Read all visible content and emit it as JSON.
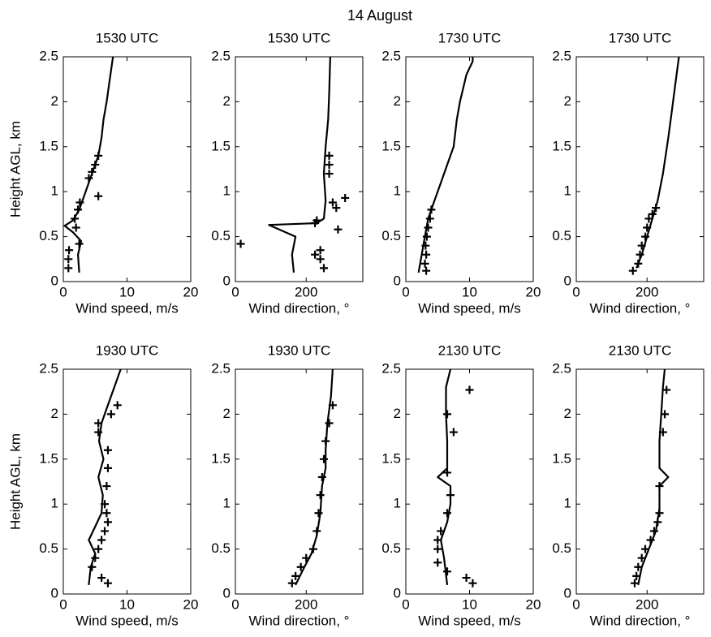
{
  "suptitle": "14 August",
  "chart_data": [
    {
      "type": "line",
      "title": "1530 UTC",
      "xlabel": "Wind speed, m/s",
      "ylabel": "Height AGL, km",
      "xlim": [
        0,
        20
      ],
      "xticks": [
        0,
        10,
        20
      ],
      "ylim": [
        0,
        2.5
      ],
      "yticks": [
        0,
        0.5,
        1,
        1.5,
        2,
        2.5
      ],
      "series": [
        {
          "type": "line",
          "color": "#000000",
          "x": [
            2.5,
            2.3,
            2.8,
            1.5,
            0.2,
            1.5,
            2.5,
            3.5,
            4.5,
            5.5,
            6,
            6.3,
            6.8,
            7.2,
            7.8
          ],
          "y": [
            0.1,
            0.3,
            0.45,
            0.55,
            0.62,
            0.68,
            0.8,
            1.0,
            1.2,
            1.4,
            1.6,
            1.8,
            2.0,
            2.2,
            2.5
          ]
        },
        {
          "type": "scatter",
          "marker": "+",
          "color": "#000000",
          "x": [
            0.8,
            0.8,
            0.9,
            2.5,
            2,
            1.8,
            2.3,
            2.6,
            5.5,
            4,
            4.5,
            5,
            5.5
          ],
          "y": [
            0.15,
            0.25,
            0.35,
            0.42,
            0.6,
            0.7,
            0.8,
            0.88,
            0.95,
            1.15,
            1.22,
            1.3,
            1.4
          ]
        }
      ]
    },
    {
      "type": "line",
      "title": "1530 UTC",
      "xlabel": "Wind direction, °",
      "xlim": [
        0,
        360
      ],
      "xticks": [
        0,
        200
      ],
      "ylim": [
        0,
        2.5
      ],
      "yticks": [
        0,
        0.5,
        1,
        1.5,
        2,
        2.5
      ],
      "series": [
        {
          "type": "line",
          "color": "#000000",
          "x": [
            165,
            160,
            170,
            95,
            230,
            250,
            255,
            250,
            255,
            262,
            265,
            268
          ],
          "y": [
            0.1,
            0.3,
            0.5,
            0.63,
            0.65,
            0.7,
            0.9,
            1.2,
            1.5,
            1.8,
            2.1,
            2.5
          ]
        },
        {
          "type": "scatter",
          "marker": "+",
          "color": "#000000",
          "x": [
            15,
            230,
            225,
            275,
            285,
            310,
            290,
            240,
            225,
            240,
            250,
            265,
            265,
            265
          ],
          "y": [
            0.42,
            0.68,
            0.65,
            0.88,
            0.82,
            0.93,
            0.58,
            0.35,
            0.3,
            0.25,
            0.15,
            1.2,
            1.3,
            1.4
          ]
        }
      ]
    },
    {
      "type": "line",
      "title": "1730 UTC",
      "xlabel": "Wind speed, m/s",
      "xlim": [
        0,
        20
      ],
      "xticks": [
        0,
        10,
        20
      ],
      "ylim": [
        0,
        2.5
      ],
      "yticks": [
        0,
        0.5,
        1,
        1.5,
        2,
        2.5
      ],
      "series": [
        {
          "type": "line",
          "color": "#000000",
          "x": [
            2,
            2.5,
            3,
            3.5,
            4.5,
            5.5,
            6.5,
            7.5,
            8,
            8.5,
            9.5,
            10.5,
            10.5
          ],
          "y": [
            0.1,
            0.3,
            0.5,
            0.7,
            0.9,
            1.1,
            1.3,
            1.5,
            1.8,
            2.0,
            2.3,
            2.45,
            2.5
          ]
        },
        {
          "type": "scatter",
          "marker": "+",
          "color": "#000000",
          "x": [
            3.2,
            3,
            3.2,
            3.1,
            3.3,
            3.5,
            3.8,
            4
          ],
          "y": [
            0.12,
            0.2,
            0.3,
            0.4,
            0.5,
            0.6,
            0.7,
            0.8
          ]
        }
      ]
    },
    {
      "type": "line",
      "title": "1730 UTC",
      "xlabel": "Wind direction, °",
      "xlim": [
        0,
        360
      ],
      "xticks": [
        0,
        200
      ],
      "ylim": [
        0,
        2.5
      ],
      "yticks": [
        0,
        0.5,
        1,
        1.5,
        2,
        2.5
      ],
      "series": [
        {
          "type": "line",
          "color": "#000000",
          "x": [
            170,
            185,
            200,
            215,
            230,
            245,
            260,
            270,
            280,
            290
          ],
          "y": [
            0.15,
            0.3,
            0.5,
            0.7,
            0.9,
            1.2,
            1.6,
            1.9,
            2.2,
            2.5
          ]
        },
        {
          "type": "scatter",
          "marker": "+",
          "color": "#000000",
          "x": [
            160,
            175,
            180,
            185,
            195,
            200,
            205,
            215,
            225
          ],
          "y": [
            0.12,
            0.2,
            0.3,
            0.4,
            0.5,
            0.6,
            0.7,
            0.75,
            0.82
          ]
        }
      ]
    },
    {
      "type": "line",
      "title": "1930 UTC",
      "xlabel": "Wind speed, m/s",
      "ylabel": "Height AGL, km",
      "xlim": [
        0,
        20
      ],
      "xticks": [
        0,
        10,
        20
      ],
      "ylim": [
        0,
        2.5
      ],
      "yticks": [
        0,
        0.5,
        1,
        1.5,
        2,
        2.5
      ],
      "series": [
        {
          "type": "line",
          "color": "#000000",
          "x": [
            4,
            4.3,
            5,
            4,
            5,
            6,
            6.2,
            5.5,
            6.3,
            5.6,
            6,
            7,
            8,
            9
          ],
          "y": [
            0.1,
            0.3,
            0.45,
            0.6,
            0.75,
            0.9,
            1.1,
            1.3,
            1.5,
            1.7,
            1.9,
            2.1,
            2.3,
            2.5
          ]
        },
        {
          "type": "scatter",
          "marker": "+",
          "color": "#000000",
          "x": [
            7,
            6,
            4.5,
            5,
            5.5,
            6,
            6.5,
            7,
            6.8,
            6.5,
            6.8,
            7,
            7,
            5.5,
            5.5,
            7.5,
            8.5
          ],
          "y": [
            0.12,
            0.18,
            0.3,
            0.4,
            0.5,
            0.6,
            0.7,
            0.8,
            0.9,
            1.0,
            1.2,
            1.4,
            1.6,
            1.8,
            1.9,
            2.0,
            2.1
          ]
        }
      ]
    },
    {
      "type": "line",
      "title": "1930 UTC",
      "xlabel": "Wind direction, °",
      "xlim": [
        0,
        360
      ],
      "xticks": [
        0,
        200
      ],
      "ylim": [
        0,
        2.5
      ],
      "yticks": [
        0,
        0.5,
        1,
        1.5,
        2,
        2.5
      ],
      "series": [
        {
          "type": "line",
          "color": "#000000",
          "x": [
            170,
            195,
            215,
            230,
            240,
            245,
            255,
            255,
            260,
            270,
            275
          ],
          "y": [
            0.1,
            0.3,
            0.45,
            0.65,
            0.9,
            1.2,
            1.4,
            1.6,
            1.9,
            2.2,
            2.5
          ]
        },
        {
          "type": "scatter",
          "marker": "+",
          "color": "#000000",
          "x": [
            160,
            170,
            185,
            200,
            220,
            230,
            235,
            240,
            245,
            250,
            255,
            265,
            275
          ],
          "y": [
            0.12,
            0.2,
            0.3,
            0.4,
            0.5,
            0.7,
            0.9,
            1.1,
            1.3,
            1.5,
            1.7,
            1.9,
            2.1
          ]
        }
      ]
    },
    {
      "type": "line",
      "title": "2130 UTC",
      "xlabel": "Wind speed, m/s",
      "xlim": [
        0,
        20
      ],
      "xticks": [
        0,
        10,
        20
      ],
      "ylim": [
        0,
        2.5
      ],
      "yticks": [
        0,
        0.5,
        1,
        1.5,
        2,
        2.5
      ],
      "series": [
        {
          "type": "line",
          "color": "#000000",
          "x": [
            6.5,
            6,
            5.5,
            6.5,
            7,
            7,
            5,
            6.5,
            6.5,
            6.3,
            6.3,
            7
          ],
          "y": [
            0.1,
            0.4,
            0.6,
            0.8,
            1.0,
            1.2,
            1.3,
            1.4,
            1.7,
            2.0,
            2.3,
            2.5
          ]
        },
        {
          "type": "scatter",
          "marker": "+",
          "color": "#000000",
          "x": [
            10.5,
            9.5,
            6.5,
            5,
            5,
            5,
            5.5,
            6.5,
            7,
            6.5,
            6.5,
            7.5,
            10
          ],
          "y": [
            0.12,
            0.18,
            0.25,
            0.35,
            0.5,
            0.6,
            0.7,
            0.9,
            1.1,
            1.35,
            2.0,
            1.8,
            2.27
          ]
        }
      ]
    },
    {
      "type": "line",
      "title": "2130 UTC",
      "xlabel": "Wind direction, °",
      "xlim": [
        0,
        360
      ],
      "xticks": [
        0,
        200
      ],
      "ylim": [
        0,
        2.5
      ],
      "yticks": [
        0,
        0.5,
        1,
        1.5,
        2,
        2.5
      ],
      "series": [
        {
          "type": "line",
          "color": "#000000",
          "x": [
            175,
            185,
            205,
            225,
            235,
            235,
            260,
            235,
            235,
            240,
            245,
            250
          ],
          "y": [
            0.1,
            0.3,
            0.5,
            0.7,
            0.95,
            1.2,
            1.3,
            1.4,
            1.7,
            2.0,
            2.3,
            2.5
          ]
        },
        {
          "type": "scatter",
          "marker": "+",
          "color": "#000000",
          "x": [
            165,
            170,
            175,
            185,
            195,
            210,
            220,
            230,
            235,
            235,
            245,
            250,
            255
          ],
          "y": [
            0.12,
            0.2,
            0.3,
            0.4,
            0.5,
            0.6,
            0.7,
            0.8,
            0.9,
            1.2,
            1.8,
            2.0,
            2.27
          ]
        }
      ]
    }
  ]
}
